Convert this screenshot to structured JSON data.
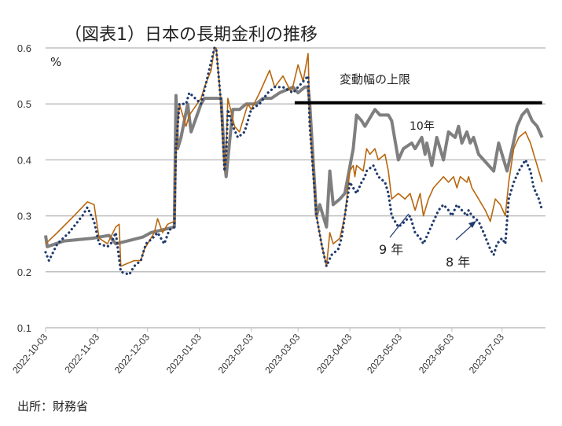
{
  "chart_data": {
    "type": "line",
    "title": "（図表1）日本の長期金利の推移",
    "ylabel": "%",
    "ylim": [
      0.1,
      0.6
    ],
    "yticks": [
      "0.1",
      "0.2",
      "0.3",
      "0.4",
      "0.5",
      "0.6"
    ],
    "xlim": [
      "2022-10-03",
      "2023-07-29"
    ],
    "xticks": [
      "2022-10-03",
      "2022-11-03",
      "2022-12-03",
      "2023-01-03",
      "2023-02-03",
      "2023-03-03",
      "2023-04-03",
      "2023-05-03",
      "2023-06-03",
      "2023-07-03"
    ],
    "grid": true,
    "source": "出所：財務省",
    "annotations": {
      "cap": "変動幅の上限",
      "s10": "10年",
      "s9": "9 年",
      "s8": "8 年"
    },
    "cap_line": {
      "value": 0.502,
      "from": "2023-03-01",
      "to": "2023-07-27"
    },
    "series": [
      {
        "name": "10年",
        "color": "#7f7f7f",
        "style": "solid-thick",
        "points": [
          [
            "2022-10-03",
            0.265
          ],
          [
            "2022-10-04",
            0.245
          ],
          [
            "2022-10-14",
            0.255
          ],
          [
            "2022-10-31",
            0.26
          ],
          [
            "2022-11-10",
            0.265
          ],
          [
            "2022-11-14",
            0.25
          ],
          [
            "2022-11-21",
            0.255
          ],
          [
            "2022-11-30",
            0.262
          ],
          [
            "2022-12-05",
            0.27
          ],
          [
            "2022-12-12",
            0.275
          ],
          [
            "2022-12-19",
            0.28
          ],
          [
            "2022-12-20",
            0.515
          ],
          [
            "2022-12-21",
            0.42
          ],
          [
            "2022-12-23",
            0.44
          ],
          [
            "2022-12-27",
            0.5
          ],
          [
            "2022-12-29",
            0.45
          ],
          [
            "2023-01-04",
            0.5
          ],
          [
            "2023-01-06",
            0.51
          ],
          [
            "2023-01-10",
            0.51
          ],
          [
            "2023-01-13",
            0.51
          ],
          [
            "2023-01-16",
            0.51
          ],
          [
            "2023-01-18",
            0.4
          ],
          [
            "2023-01-19",
            0.37
          ],
          [
            "2023-01-23",
            0.49
          ],
          [
            "2023-01-27",
            0.49
          ],
          [
            "2023-01-31",
            0.5
          ],
          [
            "2023-02-06",
            0.5
          ],
          [
            "2023-02-10",
            0.51
          ],
          [
            "2023-02-15",
            0.51
          ],
          [
            "2023-02-20",
            0.52
          ],
          [
            "2023-02-28",
            0.53
          ],
          [
            "2023-03-03",
            0.52
          ],
          [
            "2023-03-07",
            0.53
          ],
          [
            "2023-03-09",
            0.53
          ],
          [
            "2023-03-10",
            0.5
          ],
          [
            "2023-03-13",
            0.35
          ],
          [
            "2023-03-14",
            0.3
          ],
          [
            "2023-03-16",
            0.32
          ],
          [
            "2023-03-20",
            0.28
          ],
          [
            "2023-03-22",
            0.38
          ],
          [
            "2023-03-24",
            0.32
          ],
          [
            "2023-03-28",
            0.33
          ],
          [
            "2023-03-31",
            0.34
          ],
          [
            "2023-04-05",
            0.42
          ],
          [
            "2023-04-07",
            0.48
          ],
          [
            "2023-04-10",
            0.47
          ],
          [
            "2023-04-12",
            0.46
          ],
          [
            "2023-04-14",
            0.47
          ],
          [
            "2023-04-18",
            0.49
          ],
          [
            "2023-04-21",
            0.48
          ],
          [
            "2023-04-26",
            0.48
          ],
          [
            "2023-04-28",
            0.47
          ],
          [
            "2023-05-02",
            0.4
          ],
          [
            "2023-05-05",
            0.42
          ],
          [
            "2023-05-10",
            0.43
          ],
          [
            "2023-05-12",
            0.42
          ],
          [
            "2023-05-16",
            0.44
          ],
          [
            "2023-05-18",
            0.41
          ],
          [
            "2023-05-19",
            0.43
          ],
          [
            "2023-05-22",
            0.39
          ],
          [
            "2023-05-25",
            0.44
          ],
          [
            "2023-05-29",
            0.4
          ],
          [
            "2023-06-01",
            0.45
          ],
          [
            "2023-06-05",
            0.44
          ],
          [
            "2023-06-07",
            0.46
          ],
          [
            "2023-06-09",
            0.43
          ],
          [
            "2023-06-12",
            0.45
          ],
          [
            "2023-06-14",
            0.43
          ],
          [
            "2023-06-16",
            0.44
          ],
          [
            "2023-06-19",
            0.41
          ],
          [
            "2023-06-22",
            0.4
          ],
          [
            "2023-06-28",
            0.38
          ],
          [
            "2023-07-01",
            0.43
          ],
          [
            "2023-07-06",
            0.38
          ],
          [
            "2023-07-09",
            0.42
          ],
          [
            "2023-07-12",
            0.46
          ],
          [
            "2023-07-15",
            0.48
          ],
          [
            "2023-07-18",
            0.49
          ],
          [
            "2023-07-21",
            0.47
          ],
          [
            "2023-07-24",
            0.46
          ],
          [
            "2023-07-27",
            0.44
          ]
        ]
      },
      {
        "name": "9年",
        "color": "#b8670e",
        "style": "solid-thin",
        "points": [
          [
            "2022-10-03",
            0.25
          ],
          [
            "2022-10-10",
            0.27
          ],
          [
            "2022-10-20",
            0.3
          ],
          [
            "2022-10-28",
            0.325
          ],
          [
            "2022-11-01",
            0.32
          ],
          [
            "2022-11-04",
            0.26
          ],
          [
            "2022-11-09",
            0.25
          ],
          [
            "2022-11-14",
            0.28
          ],
          [
            "2022-11-16",
            0.285
          ],
          [
            "2022-11-17",
            0.21
          ],
          [
            "2022-11-21",
            0.215
          ],
          [
            "2022-11-25",
            0.22
          ],
          [
            "2022-11-29",
            0.22
          ],
          [
            "2022-12-01",
            0.24
          ],
          [
            "2022-12-05",
            0.26
          ],
          [
            "2022-12-07",
            0.27
          ],
          [
            "2022-12-09",
            0.295
          ],
          [
            "2022-12-12",
            0.27
          ],
          [
            "2022-12-15",
            0.285
          ],
          [
            "2022-12-19",
            0.29
          ],
          [
            "2022-12-20",
            0.41
          ],
          [
            "2022-12-22",
            0.5
          ],
          [
            "2022-12-26",
            0.46
          ],
          [
            "2022-12-28",
            0.48
          ],
          [
            "2023-01-04",
            0.51
          ],
          [
            "2023-01-06",
            0.53
          ],
          [
            "2023-01-10",
            0.56
          ],
          [
            "2023-01-12",
            0.6
          ],
          [
            "2023-01-13",
            0.6
          ],
          [
            "2023-01-16",
            0.5
          ],
          [
            "2023-01-18",
            0.38
          ],
          [
            "2023-01-19",
            0.42
          ],
          [
            "2023-01-20",
            0.51
          ],
          [
            "2023-01-24",
            0.46
          ],
          [
            "2023-01-27",
            0.45
          ],
          [
            "2023-02-01",
            0.5
          ],
          [
            "2023-02-03",
            0.49
          ],
          [
            "2023-02-08",
            0.52
          ],
          [
            "2023-02-14",
            0.56
          ],
          [
            "2023-02-17",
            0.53
          ],
          [
            "2023-02-22",
            0.55
          ],
          [
            "2023-02-27",
            0.52
          ],
          [
            "2023-03-03",
            0.57
          ],
          [
            "2023-03-06",
            0.54
          ],
          [
            "2023-03-09",
            0.59
          ],
          [
            "2023-03-10",
            0.47
          ],
          [
            "2023-03-14",
            0.3
          ],
          [
            "2023-03-17",
            0.25
          ],
          [
            "2023-03-20",
            0.21
          ],
          [
            "2023-03-22",
            0.27
          ],
          [
            "2023-03-24",
            0.25
          ],
          [
            "2023-03-28",
            0.26
          ],
          [
            "2023-03-31",
            0.3
          ],
          [
            "2023-04-03",
            0.38
          ],
          [
            "2023-04-05",
            0.39
          ],
          [
            "2023-04-06",
            0.37
          ],
          [
            "2023-04-07",
            0.39
          ],
          [
            "2023-04-11",
            0.38
          ],
          [
            "2023-04-13",
            0.42
          ],
          [
            "2023-04-15",
            0.41
          ],
          [
            "2023-04-18",
            0.42
          ],
          [
            "2023-04-20",
            0.4
          ],
          [
            "2023-04-24",
            0.41
          ],
          [
            "2023-04-26",
            0.38
          ],
          [
            "2023-04-28",
            0.33
          ],
          [
            "2023-05-02",
            0.34
          ],
          [
            "2023-05-06",
            0.33
          ],
          [
            "2023-05-09",
            0.34
          ],
          [
            "2023-05-12",
            0.31
          ],
          [
            "2023-05-15",
            0.34
          ],
          [
            "2023-05-17",
            0.3
          ],
          [
            "2023-05-20",
            0.33
          ],
          [
            "2023-05-23",
            0.35
          ],
          [
            "2023-05-26",
            0.36
          ],
          [
            "2023-05-29",
            0.37
          ],
          [
            "2023-06-01",
            0.36
          ],
          [
            "2023-06-04",
            0.37
          ],
          [
            "2023-06-06",
            0.35
          ],
          [
            "2023-06-08",
            0.37
          ],
          [
            "2023-06-12",
            0.36
          ],
          [
            "2023-06-13",
            0.37
          ],
          [
            "2023-06-15",
            0.35
          ],
          [
            "2023-06-19",
            0.33
          ],
          [
            "2023-06-23",
            0.31
          ],
          [
            "2023-06-26",
            0.29
          ],
          [
            "2023-06-29",
            0.33
          ],
          [
            "2023-07-02",
            0.32
          ],
          [
            "2023-07-05",
            0.3
          ],
          [
            "2023-07-07",
            0.36
          ],
          [
            "2023-07-10",
            0.42
          ],
          [
            "2023-07-13",
            0.44
          ],
          [
            "2023-07-17",
            0.45
          ],
          [
            "2023-07-20",
            0.43
          ],
          [
            "2023-07-22",
            0.41
          ],
          [
            "2023-07-25",
            0.38
          ],
          [
            "2023-07-27",
            0.36
          ]
        ]
      },
      {
        "name": "8年",
        "color": "#1f3a6e",
        "style": "dotted",
        "points": [
          [
            "2022-10-03",
            0.235
          ],
          [
            "2022-10-05",
            0.22
          ],
          [
            "2022-10-10",
            0.25
          ],
          [
            "2022-10-17",
            0.27
          ],
          [
            "2022-10-25",
            0.3
          ],
          [
            "2022-10-28",
            0.315
          ],
          [
            "2022-11-01",
            0.29
          ],
          [
            "2022-11-04",
            0.25
          ],
          [
            "2022-11-09",
            0.245
          ],
          [
            "2022-11-11",
            0.25
          ],
          [
            "2022-11-14",
            0.27
          ],
          [
            "2022-11-17",
            0.2
          ],
          [
            "2022-11-22",
            0.195
          ],
          [
            "2022-11-25",
            0.21
          ],
          [
            "2022-11-29",
            0.22
          ],
          [
            "2022-12-02",
            0.25
          ],
          [
            "2022-12-06",
            0.26
          ],
          [
            "2022-12-09",
            0.27
          ],
          [
            "2022-12-13",
            0.25
          ],
          [
            "2022-12-16",
            0.275
          ],
          [
            "2022-12-19",
            0.28
          ],
          [
            "2022-12-20",
            0.42
          ],
          [
            "2022-12-22",
            0.5
          ],
          [
            "2022-12-26",
            0.5
          ],
          [
            "2022-12-28",
            0.52
          ],
          [
            "2023-01-04",
            0.5
          ],
          [
            "2023-01-08",
            0.55
          ],
          [
            "2023-01-12",
            0.6
          ],
          [
            "2023-01-13",
            0.6
          ],
          [
            "2023-01-16",
            0.5
          ],
          [
            "2023-01-18",
            0.38
          ],
          [
            "2023-01-19",
            0.41
          ],
          [
            "2023-01-20",
            0.49
          ],
          [
            "2023-01-23",
            0.46
          ],
          [
            "2023-01-26",
            0.44
          ],
          [
            "2023-01-30",
            0.45
          ],
          [
            "2023-02-03",
            0.49
          ],
          [
            "2023-02-08",
            0.5
          ],
          [
            "2023-02-13",
            0.52
          ],
          [
            "2023-02-17",
            0.53
          ],
          [
            "2023-02-22",
            0.53
          ],
          [
            "2023-02-28",
            0.52
          ],
          [
            "2023-03-06",
            0.54
          ],
          [
            "2023-03-09",
            0.55
          ],
          [
            "2023-03-10",
            0.46
          ],
          [
            "2023-03-14",
            0.3
          ],
          [
            "2023-03-17",
            0.25
          ],
          [
            "2023-03-20",
            0.21
          ],
          [
            "2023-03-23",
            0.23
          ],
          [
            "2023-03-27",
            0.24
          ],
          [
            "2023-03-29",
            0.26
          ],
          [
            "2023-03-31",
            0.3
          ],
          [
            "2023-04-03",
            0.36
          ],
          [
            "2023-04-05",
            0.35
          ],
          [
            "2023-04-07",
            0.34
          ],
          [
            "2023-04-10",
            0.36
          ],
          [
            "2023-04-12",
            0.37
          ],
          [
            "2023-04-13",
            0.38
          ],
          [
            "2023-04-17",
            0.39
          ],
          [
            "2023-04-20",
            0.37
          ],
          [
            "2023-04-24",
            0.36
          ],
          [
            "2023-04-26",
            0.34
          ],
          [
            "2023-04-28",
            0.3
          ],
          [
            "2023-05-02",
            0.28
          ],
          [
            "2023-05-06",
            0.29
          ],
          [
            "2023-05-09",
            0.3
          ],
          [
            "2023-05-12",
            0.27
          ],
          [
            "2023-05-15",
            0.26
          ],
          [
            "2023-05-17",
            0.25
          ],
          [
            "2023-05-20",
            0.27
          ],
          [
            "2023-05-23",
            0.29
          ],
          [
            "2023-05-26",
            0.31
          ],
          [
            "2023-05-29",
            0.32
          ],
          [
            "2023-06-01",
            0.31
          ],
          [
            "2023-06-03",
            0.3
          ],
          [
            "2023-06-06",
            0.32
          ],
          [
            "2023-06-09",
            0.31
          ],
          [
            "2023-06-12",
            0.3
          ],
          [
            "2023-06-13",
            0.31
          ],
          [
            "2023-06-15",
            0.3
          ],
          [
            "2023-06-19",
            0.29
          ],
          [
            "2023-06-22",
            0.27
          ],
          [
            "2023-06-26",
            0.24
          ],
          [
            "2023-06-28",
            0.23
          ],
          [
            "2023-06-30",
            0.25
          ],
          [
            "2023-07-03",
            0.26
          ],
          [
            "2023-07-05",
            0.25
          ],
          [
            "2023-07-07",
            0.33
          ],
          [
            "2023-07-10",
            0.36
          ],
          [
            "2023-07-13",
            0.38
          ],
          [
            "2023-07-17",
            0.4
          ],
          [
            "2023-07-20",
            0.38
          ],
          [
            "2023-07-22",
            0.35
          ],
          [
            "2023-07-25",
            0.33
          ],
          [
            "2023-07-27",
            0.31
          ]
        ]
      }
    ]
  }
}
